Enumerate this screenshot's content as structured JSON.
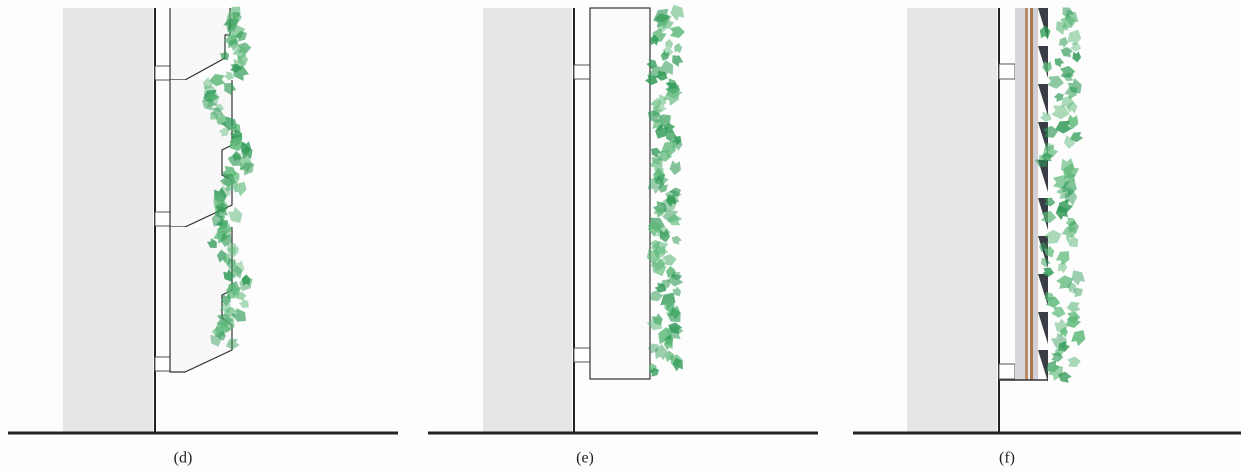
{
  "panels": [
    {
      "label": "(d)"
    },
    {
      "label": "(e)"
    },
    {
      "label": "(f)"
    }
  ]
}
